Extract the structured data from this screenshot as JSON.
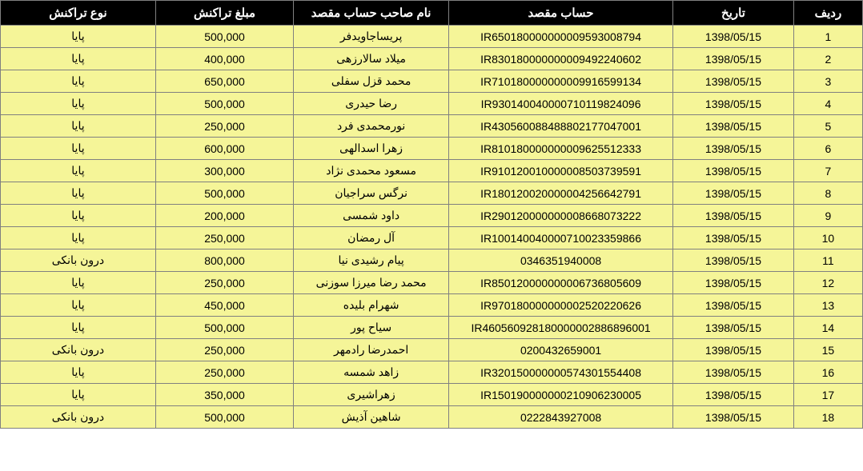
{
  "table": {
    "header_bg": "#000000",
    "header_color": "#ffffff",
    "row_bg": "#f5f598",
    "row_color": "#000000",
    "border_color": "#808080",
    "font_family": "Tahoma",
    "header_fontsize": 15,
    "cell_fontsize": 14,
    "columns": [
      {
        "key": "row",
        "label": "ردیف"
      },
      {
        "key": "date",
        "label": "تاریخ"
      },
      {
        "key": "account",
        "label": "حساب مقصد"
      },
      {
        "key": "name",
        "label": "نام صاحب حساب مقصد"
      },
      {
        "key": "amount",
        "label": "مبلغ تراکنش"
      },
      {
        "key": "type",
        "label": "نوع تراکنش"
      }
    ],
    "rows": [
      {
        "row": "1",
        "date": "1398/05/15",
        "account": "IR650180000000009593008794",
        "name": "پریساجاویدفر",
        "amount": "500,000",
        "type": "پایا"
      },
      {
        "row": "2",
        "date": "1398/05/15",
        "account": "IR830180000000009492240602",
        "name": "میلاد سالارزهی",
        "amount": "400,000",
        "type": "پایا"
      },
      {
        "row": "3",
        "date": "1398/05/15",
        "account": "IR710180000000009916599134",
        "name": "محمد قزل سفلی",
        "amount": "650,000",
        "type": "پایا"
      },
      {
        "row": "4",
        "date": "1398/05/15",
        "account": "IR930140040000710119824096",
        "name": "رضا حیدری",
        "amount": "500,000",
        "type": "پایا"
      },
      {
        "row": "5",
        "date": "1398/05/15",
        "account": "IR430560088488802177047001",
        "name": "نورمحمدی فرد",
        "amount": "250,000",
        "type": "پایا"
      },
      {
        "row": "6",
        "date": "1398/05/15",
        "account": "IR810180000000009625512333",
        "name": "زهرا اسدالهی",
        "amount": "600,000",
        "type": "پایا"
      },
      {
        "row": "7",
        "date": "1398/05/15",
        "account": "IR910120010000008503739591",
        "name": "مسعود محمدی نژاد",
        "amount": "300,000",
        "type": "پایا"
      },
      {
        "row": "8",
        "date": "1398/05/15",
        "account": "IR180120020000004256642791",
        "name": "نرگس سراجیان",
        "amount": "500,000",
        "type": "پایا"
      },
      {
        "row": "9",
        "date": "1398/05/15",
        "account": "IR290120000000008668073222",
        "name": "داود شمسی",
        "amount": "200,000",
        "type": "پایا"
      },
      {
        "row": "10",
        "date": "1398/05/15",
        "account": "IR100140040000710023359866",
        "name": "آل رمضان",
        "amount": "250,000",
        "type": "پایا"
      },
      {
        "row": "11",
        "date": "1398/05/15",
        "account": "0346351940008",
        "name": "پیام رشیدی نیا",
        "amount": "800,000",
        "type": "درون بانکی"
      },
      {
        "row": "12",
        "date": "1398/05/15",
        "account": "IR850120000000006736805609",
        "name": "محمد رضا میرزا سوزنی",
        "amount": "250,000",
        "type": "پایا"
      },
      {
        "row": "13",
        "date": "1398/05/15",
        "account": "IR970180000000002520220626",
        "name": "شهرام بلیده",
        "amount": "450,000",
        "type": "پایا"
      },
      {
        "row": "14",
        "date": "1398/05/15",
        "account": "IR460560928180000002886896001",
        "name": "سیاح پور",
        "amount": "500,000",
        "type": "پایا"
      },
      {
        "row": "15",
        "date": "1398/05/15",
        "account": "0200432659001",
        "name": "احمدرضا رادمهر",
        "amount": "250,000",
        "type": "درون بانکی"
      },
      {
        "row": "16",
        "date": "1398/05/15",
        "account": "IR320150000000574301554408",
        "name": "زاهد شمسه",
        "amount": "250,000",
        "type": "پایا"
      },
      {
        "row": "17",
        "date": "1398/05/15",
        "account": "IR150190000000210906230005",
        "name": "زهراشیری",
        "amount": "350,000",
        "type": "پایا"
      },
      {
        "row": "18",
        "date": "1398/05/15",
        "account": "0222843927008",
        "name": "شاهین آذیش",
        "amount": "500,000",
        "type": "درون بانکی"
      }
    ]
  }
}
